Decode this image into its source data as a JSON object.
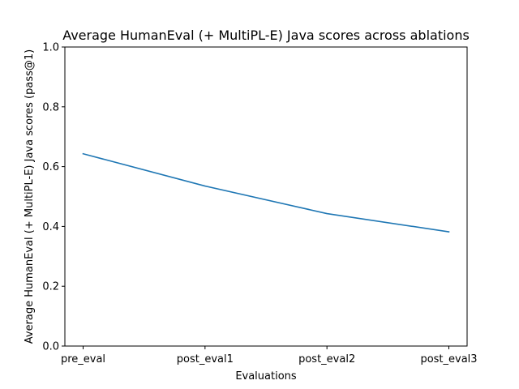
{
  "chart_data": {
    "type": "line",
    "title": "Average HumanEval (+ MultiPL-E) Java scores across ablations",
    "xlabel": "Evaluations",
    "ylabel": "Average HumanEval (+ MultiPL-E) Java scores (pass@1)",
    "categories": [
      "pre_eval",
      "post_eval1",
      "post_eval2",
      "post_eval3"
    ],
    "series": [
      {
        "values": [
          0.643,
          0.535,
          0.443,
          0.382
        ],
        "color": "#1f77b4"
      }
    ],
    "ylim": [
      0.0,
      1.0
    ],
    "yticks": [
      0.0,
      0.2,
      0.4,
      0.6,
      0.8,
      1.0
    ],
    "ytick_labels": [
      "0.0",
      "0.2",
      "0.4",
      "0.6",
      "0.8",
      "1.0"
    ],
    "grid": false,
    "legend": "none"
  }
}
